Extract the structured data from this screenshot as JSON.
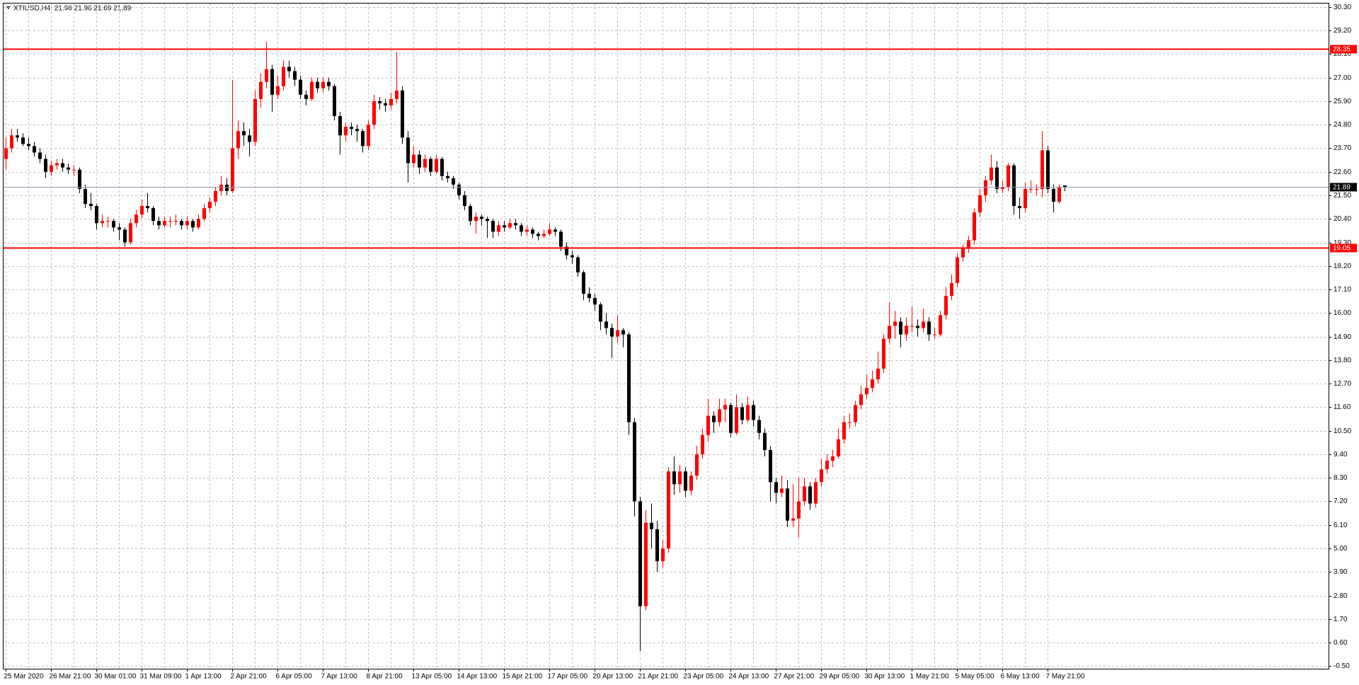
{
  "chart_data": {
    "type": "candlestick",
    "title": "XTIUSD,H4  21.96 21.96 21.69 21.89",
    "bull_color": "#ff0000",
    "bear_color": "#000000",
    "grid": true,
    "levels": [
      28.35,
      19.05
    ],
    "level_color": "#ff0000",
    "bid": 21.89,
    "bid_color": "#8ca0b4",
    "ylim": [
      -0.62,
      30.46
    ],
    "yticks": [
      {
        "value": 30.3,
        "label": "30.30"
      },
      {
        "value": 29.2,
        "label": "29.20"
      },
      {
        "value": 28.1,
        "label": "28.10"
      },
      {
        "value": 27,
        "label": "27.00"
      },
      {
        "value": 25.9,
        "label": "25.90"
      },
      {
        "value": 24.8,
        "label": "24.80"
      },
      {
        "value": 23.7,
        "label": "23.70"
      },
      {
        "value": 22.6,
        "label": "22.60"
      },
      {
        "value": 21.5,
        "label": "21.50"
      },
      {
        "value": 20.4,
        "label": "20.40"
      },
      {
        "value": 19.3,
        "label": "19.30"
      },
      {
        "value": 18.2,
        "label": "18.20"
      },
      {
        "value": 17.1,
        "label": "17.10"
      },
      {
        "value": 16,
        "label": "16.00"
      },
      {
        "value": 14.9,
        "label": "14.90"
      },
      {
        "value": 13.8,
        "label": "13.80"
      },
      {
        "value": 12.7,
        "label": "12.70"
      },
      {
        "value": 11.6,
        "label": "11.60"
      },
      {
        "value": 10.5,
        "label": "10.50"
      },
      {
        "value": 9.4,
        "label": "9.40"
      },
      {
        "value": 8.3,
        "label": "8.30"
      },
      {
        "value": 7.2,
        "label": "7.20"
      },
      {
        "value": 6.1,
        "label": "6.10"
      },
      {
        "value": 5,
        "label": "5.00"
      },
      {
        "value": 3.9,
        "label": "3.90"
      },
      {
        "value": 2.8,
        "label": "2.80"
      },
      {
        "value": 1.7,
        "label": "1.70"
      },
      {
        "value": 0.6,
        "label": "0.60"
      },
      {
        "value": -0.5,
        "label": "-0.50"
      }
    ],
    "categories": [
      "25 Mar 2020",
      null,
      null,
      null,
      null,
      null,
      null,
      null,
      "26 Mar 21:00",
      null,
      null,
      null,
      null,
      null,
      null,
      null,
      "30 Mar 01:00",
      null,
      null,
      null,
      null,
      null,
      null,
      null,
      "31 Mar 09:00",
      null,
      null,
      null,
      null,
      null,
      null,
      null,
      "1 Apr 13:00",
      null,
      null,
      null,
      null,
      null,
      null,
      null,
      "2 Apr 21:00",
      null,
      null,
      null,
      null,
      null,
      null,
      null,
      "6 Apr 05:00",
      null,
      null,
      null,
      null,
      null,
      null,
      null,
      "7 Apr 13:00",
      null,
      null,
      null,
      null,
      null,
      null,
      null,
      "8 Apr 21:00",
      null,
      null,
      null,
      null,
      null,
      null,
      null,
      "13 Apr 05:00",
      null,
      null,
      null,
      null,
      null,
      null,
      null,
      "14 Apr 13:00",
      null,
      null,
      null,
      null,
      null,
      null,
      null,
      "15 Apr 21:00",
      null,
      null,
      null,
      null,
      null,
      null,
      null,
      "17 Apr 05:00",
      null,
      null,
      null,
      null,
      null,
      null,
      null,
      "20 Apr 13:00",
      null,
      null,
      null,
      null,
      null,
      null,
      null,
      "21 Apr 21:00",
      null,
      null,
      null,
      null,
      null,
      null,
      null,
      "23 Apr 05:00",
      null,
      null,
      null,
      null,
      null,
      null,
      null,
      "24 Apr 13:00",
      null,
      null,
      null,
      null,
      null,
      null,
      null,
      "27 Apr 21:00",
      null,
      null,
      null,
      null,
      null,
      null,
      null,
      "29 Apr 05:00",
      null,
      null,
      null,
      null,
      null,
      null,
      null,
      "30 Apr 13:00",
      null,
      null,
      null,
      null,
      null,
      null,
      null,
      "1 May 21:00",
      null,
      null,
      null,
      null,
      null,
      null,
      null,
      "5 May 05:00",
      null,
      null,
      null,
      null,
      null,
      null,
      null,
      "6 May 13:00",
      null,
      null,
      null,
      null,
      null,
      null,
      null,
      "7 May 21:00",
      null,
      null,
      null
    ],
    "ohlc": [
      [
        23.2,
        24.2,
        22.7,
        23.7
      ],
      [
        23.7,
        24.6,
        23.5,
        24.3
      ],
      [
        24.3,
        24.6,
        24.0,
        24.2
      ],
      [
        24.2,
        24.4,
        23.8,
        23.9
      ],
      [
        23.9,
        24.2,
        23.6,
        23.8
      ],
      [
        23.8,
        24.0,
        23.3,
        23.5
      ],
      [
        23.5,
        23.7,
        23.0,
        23.2
      ],
      [
        23.2,
        23.4,
        22.3,
        22.6
      ],
      [
        22.6,
        23.1,
        22.4,
        22.9
      ],
      [
        22.9,
        23.2,
        22.7,
        23.0
      ],
      [
        23.0,
        23.2,
        22.6,
        22.8
      ],
      [
        22.8,
        23.0,
        22.5,
        22.7
      ],
      [
        22.7,
        22.9,
        22.4,
        22.7
      ],
      [
        22.7,
        22.8,
        21.6,
        21.8
      ],
      [
        21.8,
        22.0,
        20.9,
        21.1
      ],
      [
        21.1,
        21.6,
        20.8,
        21.0
      ],
      [
        21.0,
        21.1,
        19.9,
        20.2
      ],
      [
        20.2,
        20.6,
        20.0,
        20.3
      ],
      [
        20.3,
        20.5,
        20.0,
        20.3
      ],
      [
        20.3,
        20.4,
        19.8,
        20.0
      ],
      [
        20.0,
        20.2,
        19.4,
        19.9
      ],
      [
        19.9,
        20.0,
        19.1,
        19.3
      ],
      [
        19.3,
        20.4,
        19.2,
        20.2
      ],
      [
        20.2,
        20.8,
        20.0,
        20.6
      ],
      [
        20.6,
        21.3,
        20.4,
        21.0
      ],
      [
        21.0,
        21.6,
        20.7,
        20.9
      ],
      [
        20.9,
        21.0,
        20.1,
        20.3
      ],
      [
        20.3,
        20.5,
        19.9,
        20.1
      ],
      [
        20.1,
        20.5,
        20.0,
        20.3
      ],
      [
        20.3,
        20.5,
        20.0,
        20.3
      ],
      [
        20.3,
        20.6,
        20.1,
        20.3
      ],
      [
        20.3,
        20.4,
        19.9,
        20.1
      ],
      [
        20.1,
        20.5,
        19.9,
        20.3
      ],
      [
        20.3,
        20.4,
        19.8,
        20.0
      ],
      [
        20.0,
        20.6,
        19.9,
        20.4
      ],
      [
        20.4,
        21.1,
        20.3,
        20.9
      ],
      [
        20.9,
        21.4,
        20.7,
        21.2
      ],
      [
        21.2,
        21.9,
        21.0,
        21.7
      ],
      [
        21.7,
        22.4,
        21.5,
        22.0
      ],
      [
        22.0,
        22.3,
        21.5,
        21.7
      ],
      [
        21.7,
        26.9,
        21.6,
        23.7
      ],
      [
        23.7,
        25.0,
        23.2,
        24.5
      ],
      [
        24.5,
        24.9,
        23.8,
        24.3
      ],
      [
        24.3,
        24.6,
        23.3,
        24.0
      ],
      [
        24.0,
        26.4,
        23.8,
        26.0
      ],
      [
        26.0,
        27.2,
        25.6,
        26.8
      ],
      [
        26.8,
        28.7,
        26.5,
        27.4
      ],
      [
        27.4,
        27.6,
        25.4,
        26.2
      ],
      [
        26.2,
        27.1,
        26.0,
        26.6
      ],
      [
        26.6,
        27.8,
        26.4,
        27.5
      ],
      [
        27.5,
        27.8,
        27.0,
        27.3
      ],
      [
        27.3,
        27.5,
        26.6,
        26.9
      ],
      [
        26.9,
        27.1,
        26.0,
        26.2
      ],
      [
        26.2,
        26.4,
        25.7,
        26.0
      ],
      [
        26.0,
        27.0,
        25.9,
        26.8
      ],
      [
        26.8,
        27.0,
        26.3,
        26.5
      ],
      [
        26.5,
        27.0,
        26.3,
        26.8
      ],
      [
        26.8,
        27.0,
        26.4,
        26.6
      ],
      [
        26.6,
        26.7,
        25.0,
        25.2
      ],
      [
        25.2,
        25.4,
        23.4,
        24.3
      ],
      [
        24.3,
        24.9,
        24.0,
        24.7
      ],
      [
        24.7,
        24.9,
        24.3,
        24.6
      ],
      [
        24.6,
        24.8,
        24.0,
        24.5
      ],
      [
        24.5,
        24.6,
        23.5,
        23.8
      ],
      [
        23.8,
        25.0,
        23.6,
        24.8
      ],
      [
        24.8,
        26.2,
        24.6,
        25.9
      ],
      [
        25.9,
        26.1,
        25.5,
        25.8
      ],
      [
        25.8,
        26.0,
        25.4,
        25.7
      ],
      [
        25.7,
        26.3,
        25.5,
        26.0
      ],
      [
        26.0,
        28.2,
        25.8,
        26.4
      ],
      [
        26.4,
        26.6,
        23.9,
        24.2
      ],
      [
        24.2,
        24.5,
        22.1,
        23.0
      ],
      [
        23.0,
        23.8,
        22.8,
        23.4
      ],
      [
        23.4,
        23.6,
        22.5,
        22.8
      ],
      [
        22.8,
        23.4,
        22.6,
        23.2
      ],
      [
        23.2,
        23.3,
        22.4,
        22.6
      ],
      [
        22.6,
        23.4,
        22.5,
        23.2
      ],
      [
        23.2,
        23.3,
        22.2,
        22.4
      ],
      [
        22.4,
        22.6,
        22.1,
        22.3
      ],
      [
        22.3,
        22.4,
        21.8,
        22.0
      ],
      [
        22.0,
        22.1,
        21.3,
        21.5
      ],
      [
        21.5,
        21.7,
        20.8,
        21.0
      ],
      [
        21.0,
        21.1,
        20.1,
        20.3
      ],
      [
        20.3,
        20.7,
        19.7,
        20.5
      ],
      [
        20.5,
        20.6,
        20.1,
        20.4
      ],
      [
        20.4,
        20.5,
        19.5,
        20.3
      ],
      [
        20.3,
        20.4,
        19.5,
        19.8
      ],
      [
        19.8,
        20.3,
        19.6,
        20.1
      ],
      [
        20.1,
        20.3,
        19.8,
        20.0
      ],
      [
        20.0,
        20.4,
        19.9,
        20.2
      ],
      [
        20.2,
        20.4,
        19.9,
        20.1
      ],
      [
        20.1,
        20.2,
        19.6,
        19.8
      ],
      [
        19.8,
        20.1,
        19.6,
        19.9
      ],
      [
        19.9,
        20.0,
        19.5,
        19.7
      ],
      [
        19.7,
        19.8,
        19.4,
        19.6
      ],
      [
        19.6,
        19.9,
        19.5,
        19.7
      ],
      [
        19.7,
        20.2,
        19.6,
        19.9
      ],
      [
        19.9,
        20.0,
        19.6,
        19.8
      ],
      [
        19.8,
        19.9,
        18.9,
        19.1
      ],
      [
        19.1,
        19.3,
        18.5,
        18.7
      ],
      [
        18.7,
        18.9,
        18.3,
        18.6
      ],
      [
        18.6,
        18.7,
        17.7,
        17.9
      ],
      [
        17.9,
        18.0,
        16.6,
        16.9
      ],
      [
        16.9,
        17.2,
        16.5,
        16.7
      ],
      [
        16.7,
        16.9,
        16.1,
        16.4
      ],
      [
        16.4,
        16.5,
        15.2,
        15.6
      ],
      [
        15.6,
        16.0,
        15.0,
        15.3
      ],
      [
        15.3,
        15.5,
        13.9,
        14.9
      ],
      [
        14.9,
        15.9,
        14.6,
        15.2
      ],
      [
        15.2,
        15.3,
        14.4,
        15.0
      ],
      [
        15.0,
        15.1,
        10.3,
        10.9
      ],
      [
        10.9,
        11.1,
        6.5,
        7.2
      ],
      [
        7.2,
        7.4,
        0.2,
        2.3
      ],
      [
        2.3,
        6.8,
        2.1,
        6.2
      ],
      [
        6.2,
        7.1,
        5.0,
        5.9
      ],
      [
        5.9,
        6.3,
        3.9,
        4.4
      ],
      [
        4.4,
        5.4,
        4.1,
        5.0
      ],
      [
        5.0,
        8.8,
        4.8,
        8.6
      ],
      [
        8.6,
        9.3,
        7.5,
        8.0
      ],
      [
        8.0,
        8.9,
        7.6,
        8.6
      ],
      [
        8.6,
        8.8,
        7.4,
        7.7
      ],
      [
        7.7,
        8.6,
        7.5,
        8.4
      ],
      [
        8.4,
        9.8,
        8.2,
        9.4
      ],
      [
        9.4,
        10.6,
        9.2,
        10.3
      ],
      [
        10.3,
        12.0,
        10.0,
        11.2
      ],
      [
        11.2,
        11.4,
        10.4,
        10.9
      ],
      [
        10.9,
        12.0,
        10.7,
        11.5
      ],
      [
        11.5,
        12.0,
        10.9,
        11.7
      ],
      [
        11.7,
        11.8,
        10.2,
        10.4
      ],
      [
        10.4,
        12.2,
        10.3,
        11.6
      ],
      [
        11.6,
        11.8,
        10.8,
        11.0
      ],
      [
        11.0,
        12.1,
        10.9,
        11.7
      ],
      [
        11.7,
        11.9,
        10.7,
        11.0
      ],
      [
        11.0,
        11.2,
        10.1,
        10.4
      ],
      [
        10.4,
        10.6,
        9.3,
        9.6
      ],
      [
        9.6,
        9.8,
        7.2,
        8.1
      ],
      [
        8.1,
        8.3,
        7.1,
        7.6
      ],
      [
        7.6,
        8.4,
        7.4,
        7.8
      ],
      [
        7.8,
        8.2,
        6.0,
        6.3
      ],
      [
        6.3,
        8.0,
        6.0,
        6.4
      ],
      [
        6.4,
        8.3,
        5.5,
        7.2
      ],
      [
        7.2,
        8.3,
        7.0,
        7.9
      ],
      [
        7.9,
        8.1,
        6.8,
        7.1
      ],
      [
        7.1,
        8.3,
        6.9,
        8.1
      ],
      [
        8.1,
        9.2,
        7.9,
        8.7
      ],
      [
        8.7,
        9.4,
        8.5,
        9.1
      ],
      [
        9.1,
        9.6,
        8.8,
        9.3
      ],
      [
        9.3,
        10.6,
        9.2,
        10.1
      ],
      [
        10.1,
        11.2,
        9.9,
        10.9
      ],
      [
        10.9,
        11.3,
        10.6,
        10.9
      ],
      [
        10.9,
        11.9,
        10.7,
        11.7
      ],
      [
        11.7,
        12.6,
        11.5,
        12.2
      ],
      [
        12.2,
        13.1,
        12.0,
        12.5
      ],
      [
        12.5,
        13.3,
        12.3,
        12.9
      ],
      [
        12.9,
        14.2,
        12.7,
        13.4
      ],
      [
        13.4,
        15.0,
        13.2,
        14.8
      ],
      [
        14.8,
        16.5,
        14.6,
        15.4
      ],
      [
        15.4,
        16.1,
        14.8,
        15.6
      ],
      [
        15.6,
        15.8,
        14.4,
        15.0
      ],
      [
        15.0,
        15.8,
        14.7,
        15.4
      ],
      [
        15.4,
        16.3,
        15.1,
        15.4
      ],
      [
        15.4,
        15.7,
        14.9,
        15.3
      ],
      [
        15.3,
        16.2,
        15.1,
        15.6
      ],
      [
        15.6,
        15.8,
        14.7,
        15.0
      ],
      [
        15.0,
        15.3,
        14.8,
        15.0
      ],
      [
        15.0,
        16.1,
        14.9,
        15.9
      ],
      [
        15.9,
        17.2,
        15.7,
        16.8
      ],
      [
        16.8,
        17.8,
        16.6,
        17.4
      ],
      [
        17.4,
        18.8,
        17.2,
        18.6
      ],
      [
        18.6,
        19.2,
        18.4,
        19.0
      ],
      [
        19.0,
        19.6,
        18.8,
        19.4
      ],
      [
        19.4,
        20.9,
        19.2,
        20.7
      ],
      [
        20.7,
        21.8,
        20.5,
        21.5
      ],
      [
        21.5,
        22.4,
        21.2,
        22.2
      ],
      [
        22.2,
        23.4,
        22.0,
        22.8
      ],
      [
        22.8,
        23.1,
        21.6,
        21.8
      ],
      [
        21.8,
        22.2,
        21.6,
        21.9
      ],
      [
        21.9,
        23.0,
        21.7,
        22.9
      ],
      [
        22.9,
        23.0,
        20.6,
        21.0
      ],
      [
        21.0,
        21.4,
        20.4,
        20.9
      ],
      [
        20.9,
        22.1,
        20.7,
        21.8
      ],
      [
        21.8,
        22.2,
        21.6,
        21.8
      ],
      [
        21.8,
        22.0,
        21.5,
        21.8
      ],
      [
        21.8,
        24.5,
        21.4,
        23.6
      ],
      [
        23.6,
        23.8,
        21.6,
        21.8
      ],
      [
        21.8,
        22.0,
        20.7,
        21.2
      ],
      [
        21.2,
        22.0,
        21.1,
        21.9
      ],
      [
        21.96,
        21.96,
        21.69,
        21.89
      ]
    ]
  }
}
